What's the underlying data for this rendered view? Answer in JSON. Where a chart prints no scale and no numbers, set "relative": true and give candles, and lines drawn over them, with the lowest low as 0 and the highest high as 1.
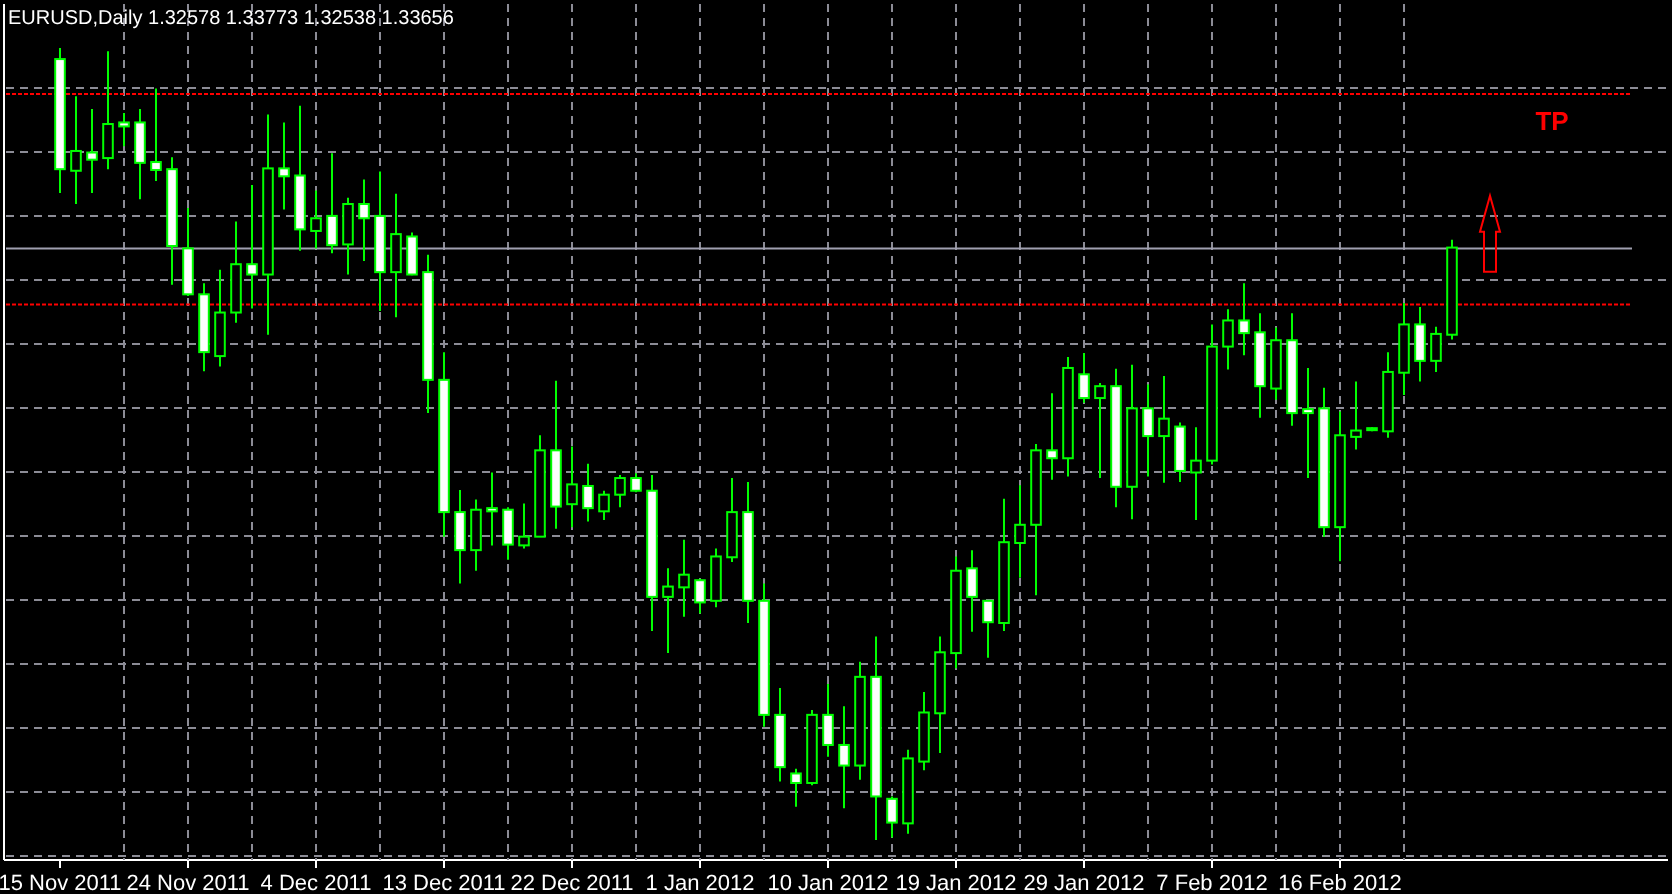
{
  "chart_data": {
    "type": "candlestick",
    "title": "EURUSD,Daily  1.32578 1.33773 1.32538 1.33656",
    "relative": true,
    "color": "#00ff00",
    "grid": true,
    "categories": [
      "15 Nov 2011",
      null,
      null,
      null,
      null,
      null,
      null,
      null,
      "24 Nov 2011",
      null,
      null,
      null,
      null,
      null,
      null,
      null,
      "4 Dec 2011",
      null,
      null,
      null,
      null,
      null,
      null,
      null,
      "13 Dec 2011",
      null,
      null,
      null,
      null,
      null,
      null,
      null,
      "22 Dec 2011",
      null,
      null,
      null,
      null,
      null,
      null,
      null,
      "1 Jan 2012",
      null,
      null,
      null,
      null,
      null,
      null,
      null,
      "10 Jan 2012",
      null,
      null,
      null,
      null,
      null,
      null,
      null,
      "19 Jan 2012",
      null,
      null,
      null,
      null,
      null,
      null,
      null,
      "29 Jan 2012",
      null,
      null,
      null,
      null,
      null,
      null,
      null,
      "7 Feb 2012",
      null,
      null,
      null,
      null,
      null,
      null,
      null,
      "16 Feb 2012",
      null,
      null,
      null,
      null,
      null,
      null,
      null
    ],
    "ohlc": [
      [
        0.986,
        1.0,
        0.817,
        0.847
      ],
      [
        0.845,
        0.939,
        0.803,
        0.87
      ],
      [
        0.868,
        0.923,
        0.817,
        0.859
      ],
      [
        0.861,
        0.996,
        0.847,
        0.904
      ],
      [
        0.906,
        0.918,
        0.876,
        0.901
      ],
      [
        0.906,
        0.923,
        0.809,
        0.855
      ],
      [
        0.856,
        0.949,
        0.832,
        0.846
      ],
      [
        0.847,
        0.862,
        0.701,
        0.75
      ],
      [
        0.747,
        0.798,
        0.687,
        0.689
      ],
      [
        0.689,
        0.703,
        0.592,
        0.616
      ],
      [
        0.611,
        0.72,
        0.598,
        0.666
      ],
      [
        0.666,
        0.781,
        0.653,
        0.727
      ],
      [
        0.727,
        0.827,
        0.671,
        0.714
      ],
      [
        0.714,
        0.916,
        0.638,
        0.848
      ],
      [
        0.848,
        0.906,
        0.796,
        0.838
      ],
      [
        0.839,
        0.927,
        0.744,
        0.771
      ],
      [
        0.769,
        0.82,
        0.747,
        0.785
      ],
      [
        0.788,
        0.867,
        0.741,
        0.751
      ],
      [
        0.752,
        0.811,
        0.714,
        0.803
      ],
      [
        0.803,
        0.834,
        0.731,
        0.785
      ],
      [
        0.788,
        0.844,
        0.668,
        0.717
      ],
      [
        0.717,
        0.816,
        0.66,
        0.765
      ],
      [
        0.762,
        0.767,
        0.713,
        0.714
      ],
      [
        0.717,
        0.739,
        0.539,
        0.581
      ],
      [
        0.581,
        0.616,
        0.383,
        0.414
      ],
      [
        0.414,
        0.442,
        0.324,
        0.366
      ],
      [
        0.366,
        0.43,
        0.34,
        0.417
      ],
      [
        0.419,
        0.464,
        0.372,
        0.415
      ],
      [
        0.417,
        0.42,
        0.354,
        0.373
      ],
      [
        0.372,
        0.425,
        0.368,
        0.383
      ],
      [
        0.383,
        0.511,
        0.383,
        0.492
      ],
      [
        0.492,
        0.58,
        0.393,
        0.421
      ],
      [
        0.424,
        0.497,
        0.395,
        0.449
      ],
      [
        0.447,
        0.475,
        0.402,
        0.419
      ],
      [
        0.415,
        0.441,
        0.404,
        0.436
      ],
      [
        0.436,
        0.461,
        0.42,
        0.457
      ],
      [
        0.457,
        0.463,
        0.439,
        0.441
      ],
      [
        0.441,
        0.461,
        0.264,
        0.307
      ],
      [
        0.307,
        0.343,
        0.236,
        0.32
      ],
      [
        0.319,
        0.379,
        0.282,
        0.335
      ],
      [
        0.328,
        0.33,
        0.286,
        0.3
      ],
      [
        0.302,
        0.368,
        0.294,
        0.358
      ],
      [
        0.357,
        0.457,
        0.351,
        0.414
      ],
      [
        0.414,
        0.452,
        0.274,
        0.302
      ],
      [
        0.302,
        0.324,
        0.143,
        0.158
      ],
      [
        0.158,
        0.192,
        0.074,
        0.092
      ],
      [
        0.084,
        0.09,
        0.042,
        0.072
      ],
      [
        0.072,
        0.164,
        0.069,
        0.158
      ],
      [
        0.158,
        0.197,
        0.105,
        0.12
      ],
      [
        0.12,
        0.169,
        0.04,
        0.094
      ],
      [
        0.094,
        0.225,
        0.076,
        0.206
      ],
      [
        0.206,
        0.257,
        0.0,
        0.055
      ],
      [
        0.052,
        0.055,
        0.003,
        0.022
      ],
      [
        0.021,
        0.114,
        0.008,
        0.103
      ],
      [
        0.099,
        0.187,
        0.088,
        0.161
      ],
      [
        0.16,
        0.257,
        0.11,
        0.237
      ],
      [
        0.236,
        0.358,
        0.217,
        0.34
      ],
      [
        0.343,
        0.366,
        0.263,
        0.307
      ],
      [
        0.302,
        0.303,
        0.23,
        0.275
      ],
      [
        0.274,
        0.431,
        0.264,
        0.376
      ],
      [
        0.375,
        0.448,
        0.331,
        0.398
      ],
      [
        0.398,
        0.5,
        0.309,
        0.492
      ],
      [
        0.492,
        0.564,
        0.455,
        0.482
      ],
      [
        0.482,
        0.61,
        0.459,
        0.596
      ],
      [
        0.588,
        0.615,
        0.552,
        0.558
      ],
      [
        0.558,
        0.577,
        0.457,
        0.573
      ],
      [
        0.573,
        0.595,
        0.42,
        0.446
      ],
      [
        0.446,
        0.6,
        0.405,
        0.545
      ],
      [
        0.545,
        0.575,
        0.459,
        0.51
      ],
      [
        0.51,
        0.586,
        0.451,
        0.532
      ],
      [
        0.522,
        0.527,
        0.452,
        0.466
      ],
      [
        0.464,
        0.521,
        0.404,
        0.479
      ],
      [
        0.479,
        0.651,
        0.474,
        0.623
      ],
      [
        0.623,
        0.67,
        0.594,
        0.656
      ],
      [
        0.656,
        0.703,
        0.612,
        0.64
      ],
      [
        0.641,
        0.665,
        0.533,
        0.573
      ],
      [
        0.57,
        0.647,
        0.556,
        0.631
      ],
      [
        0.631,
        0.665,
        0.523,
        0.539
      ],
      [
        0.544,
        0.596,
        0.457,
        0.539
      ],
      [
        0.545,
        0.571,
        0.383,
        0.395
      ],
      [
        0.395,
        0.541,
        0.352,
        0.511
      ],
      [
        0.509,
        0.579,
        0.493,
        0.517
      ],
      [
        0.52,
        0.521,
        0.516,
        0.52
      ],
      [
        0.516,
        0.616,
        0.508,
        0.591
      ],
      [
        0.59,
        0.678,
        0.562,
        0.651
      ],
      [
        0.651,
        0.673,
        0.579,
        0.605
      ],
      [
        0.605,
        0.648,
        0.591,
        0.639
      ],
      [
        0.638,
        0.758,
        0.632,
        0.748
      ]
    ],
    "ref_lines": [
      {
        "axis": "y",
        "value": 0.747,
        "color": "#a0a0b0",
        "line_style": "solid"
      },
      {
        "axis": "y",
        "value": 0.942,
        "label": "TP",
        "color": "#ff0000",
        "line_style": "dotted"
      },
      {
        "axis": "y",
        "value": 0.676,
        "color": "#ff0000",
        "line_style": "dotted"
      }
    ]
  }
}
